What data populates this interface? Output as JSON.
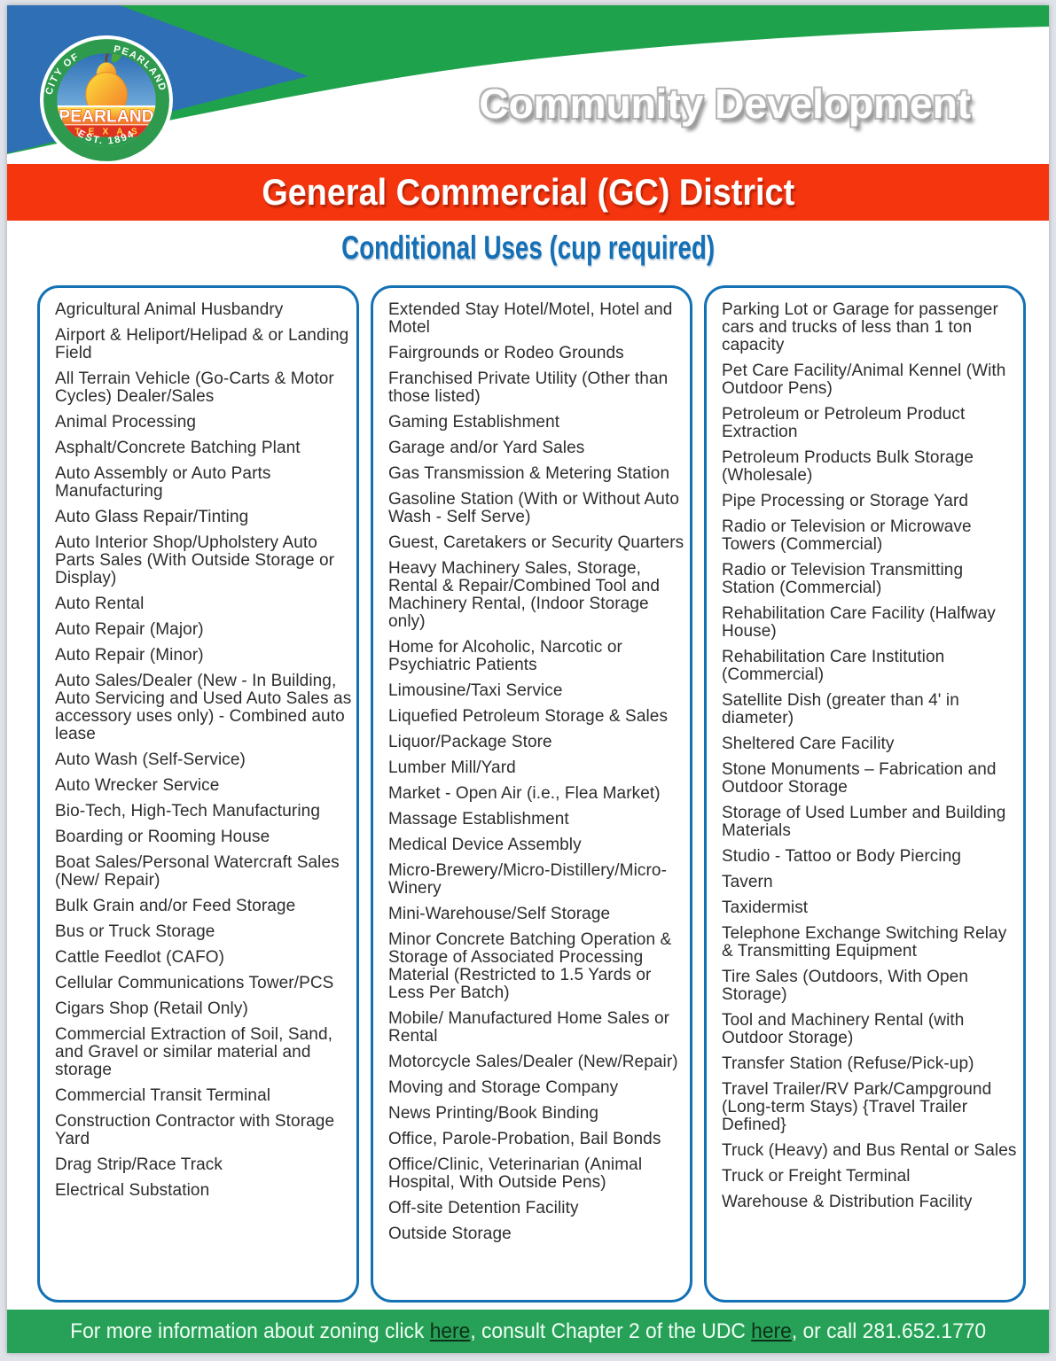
{
  "colors": {
    "header_green": "#1fa24c",
    "triangle_blue": "#2e6fb5",
    "banner_red": "#f5350e",
    "heading_blue": "#146fb5",
    "box_border_blue": "#1371b6",
    "footer_green": "#27a158",
    "text_dark": "#2d2d2d"
  },
  "header": {
    "department": "Community Development"
  },
  "logo": {
    "arc_top_left": "CITY OF",
    "arc_top_right": "PEARLAND",
    "name": "PEARLAND",
    "state": "TEXAS",
    "established": "EST. 1894"
  },
  "banner": {
    "title": "General Commercial (GC) District"
  },
  "subtitle": "Conditional Uses (cup required)",
  "columns": [
    {
      "items": [
        "Agricultural Animal Husbandry",
        "Airport & Heliport/Helipad & or Landing Field",
        "All Terrain Vehicle (Go-Carts & Motor Cycles) Dealer/Sales",
        "Animal Processing",
        "Asphalt/Concrete Batching Plant",
        "Auto Assembly or Auto Parts Manufacturing",
        "Auto Glass Repair/Tinting",
        "Auto Interior Shop/Upholstery Auto Parts Sales (With Outside Storage or Display)",
        "Auto Rental",
        "Auto Repair (Major)",
        "Auto Repair (Minor)",
        "Auto Sales/Dealer (New - In Building, Auto Servicing and Used Auto Sales as accessory uses only) - Combined auto lease",
        "Auto Wash (Self-Service)",
        "Auto Wrecker Service",
        "Bio-Tech, High-Tech Manufacturing",
        "Boarding or Rooming House",
        "Boat Sales/Personal Watercraft Sales (New/ Repair)",
        "Bulk Grain and/or Feed Storage",
        "Bus or Truck Storage",
        "Cattle Feedlot (CAFO)",
        "Cellular Communications Tower/PCS",
        "Cigars Shop (Retail Only)",
        "Commercial Extraction of Soil, Sand, and Gravel or similar material and storage",
        "Commercial Transit Terminal",
        "Construction Contractor with Storage Yard",
        "Drag Strip/Race Track",
        "Electrical Substation"
      ]
    },
    {
      "items": [
        "Extended Stay Hotel/Motel, Hotel and Motel",
        "Fairgrounds or Rodeo Grounds",
        "Franchised Private Utility (Other than those listed)",
        "Gaming Establishment",
        "Garage and/or Yard Sales",
        "Gas Transmission & Metering Station",
        "Gasoline Station (With or Without Auto Wash - Self Serve)",
        "Guest, Caretakers or Security Quarters",
        "Heavy Machinery Sales, Storage, Rental & Repair/Combined Tool and Machinery Rental, (Indoor Storage only)",
        "Home for Alcoholic, Narcotic or Psychiatric Patients",
        "Limousine/Taxi Service",
        "Liquefied Petroleum Storage & Sales",
        "Liquor/Package Store",
        "Lumber Mill/Yard",
        "Market - Open Air (i.e., Flea Market)",
        "Massage Establishment",
        "Medical Device Assembly",
        "Micro-Brewery/Micro-Distillery/Micro-Winery",
        "Mini-Warehouse/Self Storage",
        "Minor Concrete Batching Operation & Storage of Associated Processing Material (Restricted to 1.5 Yards or Less Per Batch)",
        "Mobile/ Manufactured Home Sales or Rental",
        "Motorcycle Sales/Dealer (New/Repair)",
        "Moving and Storage Company",
        "News Printing/Book Binding",
        "Office, Parole-Probation, Bail Bonds",
        "Office/Clinic, Veterinarian (Animal Hospital, With Outside Pens)",
        "Off-site Detention Facility",
        "Outside Storage"
      ]
    },
    {
      "items": [
        "Parking Lot or Garage for passenger cars and trucks of less than 1 ton capacity",
        "Pet Care Facility/Animal Kennel (With Outdoor Pens)",
        "Petroleum or Petroleum Product Extraction",
        "Petroleum Products Bulk Storage (Wholesale)",
        "Pipe Processing or Storage Yard",
        "Radio or Television or Microwave Towers (Commercial)",
        "Radio or Television Transmitting Station (Commercial)",
        "Rehabilitation Care Facility (Halfway House)",
        "Rehabilitation Care Institution (Commercial)",
        "Satellite Dish (greater than 4' in diameter)",
        "Sheltered Care Facility",
        "Stone Monuments – Fabrication and Outdoor Storage",
        "Storage of Used Lumber and Building Materials",
        "Studio - Tattoo or Body Piercing",
        "Tavern",
        "Taxidermist",
        "Telephone Exchange Switching Relay & Transmitting Equipment",
        "Tire Sales (Outdoors, With Open Storage)",
        "Tool and Machinery Rental (with Outdoor Storage)",
        "Transfer Station (Refuse/Pick-up)",
        "Travel Trailer/RV Park/Campground (Long-term Stays) {Travel Trailer Defined}",
        "Truck (Heavy) and Bus Rental or Sales",
        "Truck or Freight Terminal",
        "Warehouse & Distribution Facility"
      ]
    }
  ],
  "footer": {
    "segments": [
      {
        "text": "For more information about zoning click "
      },
      {
        "text": "here",
        "link": true
      },
      {
        "text": ", consult Chapter 2 of the UDC "
      },
      {
        "text": "here",
        "link": true
      },
      {
        "text": ", or call 281.652.1770"
      }
    ]
  }
}
